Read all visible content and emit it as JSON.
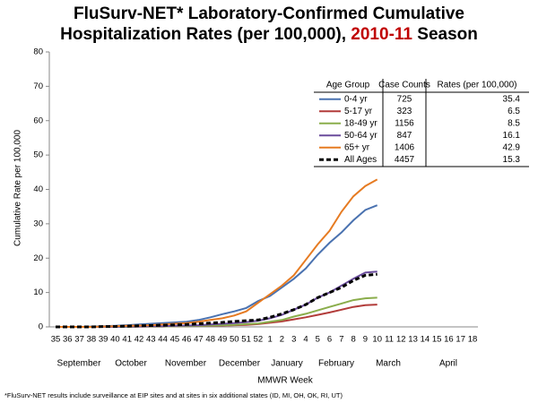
{
  "chart_data": {
    "type": "line",
    "title_line1": "FluSurv-NET* Laboratory-Confirmed Cumulative",
    "title_line2": "Hospitalization Rates (per 100,000),",
    "title_season": "2010-11",
    "title_season_color": "#c00000",
    "title_end": "Season",
    "y_label": "Cumulative Rate per 100,000",
    "x_label": "MMWR Week",
    "footnote": "*FluSurv-NET results include surveillance at EIP sites and at sites in six additional states (ID, MI, OH, OK, RI, UT)",
    "categories": [
      35,
      36,
      37,
      38,
      39,
      40,
      41,
      42,
      43,
      44,
      45,
      46,
      47,
      48,
      49,
      50,
      51,
      52,
      1,
      2,
      3,
      4,
      5,
      6,
      7,
      8,
      9,
      10,
      11,
      12,
      13,
      14,
      15,
      16,
      17,
      18
    ],
    "months": [
      "September",
      "October",
      "November",
      "December",
      "January",
      "February",
      "March",
      "April"
    ],
    "ylim": [
      0,
      80
    ],
    "yticks": [
      0,
      10,
      20,
      30,
      40,
      50,
      60,
      70,
      80
    ],
    "legend_headers": [
      "Age Group",
      "Case Counts",
      "Rates (per 100,000)"
    ],
    "series": [
      {
        "name": "0-4 yr",
        "color": "#4a72b0",
        "dashed": false,
        "case_count": 725,
        "rate": 35.4,
        "values": [
          0,
          0,
          0,
          0.1,
          0.2,
          0.3,
          0.5,
          0.7,
          0.9,
          1.1,
          1.3,
          1.5,
          2,
          2.8,
          3.7,
          4.5,
          5.5,
          7.5,
          9,
          11.5,
          14,
          17,
          21,
          24.5,
          27.5,
          31,
          34,
          35.4,
          null,
          null,
          null,
          null,
          null,
          null,
          null,
          null
        ]
      },
      {
        "name": "5-17 yr",
        "color": "#b23c3a",
        "dashed": false,
        "case_count": 323,
        "rate": 6.5,
        "values": [
          0,
          0,
          0,
          0,
          0,
          0,
          0,
          0.1,
          0.1,
          0.1,
          0.2,
          0.2,
          0.3,
          0.3,
          0.4,
          0.5,
          0.6,
          0.8,
          1.2,
          1.6,
          2.2,
          2.8,
          3.5,
          4.2,
          5,
          5.8,
          6.3,
          6.5,
          null,
          null,
          null,
          null,
          null,
          null,
          null,
          null
        ]
      },
      {
        "name": "18-49 yr",
        "color": "#8aad4b",
        "dashed": false,
        "case_count": 1156,
        "rate": 8.5,
        "values": [
          0,
          0,
          0,
          0,
          0,
          0,
          0,
          0.1,
          0.1,
          0.1,
          0.2,
          0.2,
          0.3,
          0.4,
          0.5,
          0.6,
          0.8,
          1,
          1.5,
          2,
          3,
          3.8,
          4.8,
          5.8,
          6.8,
          7.8,
          8.3,
          8.5,
          null,
          null,
          null,
          null,
          null,
          null,
          null,
          null
        ]
      },
      {
        "name": "50-64 yr",
        "color": "#6a4c9c",
        "dashed": false,
        "case_count": 847,
        "rate": 16.1,
        "values": [
          0,
          0,
          0,
          0,
          0,
          0,
          0.1,
          0.1,
          0.2,
          0.2,
          0.3,
          0.4,
          0.5,
          0.7,
          0.9,
          1.1,
          1.4,
          1.8,
          2.5,
          3.5,
          5,
          6.5,
          8.5,
          10,
          12,
          14,
          15.8,
          16.1,
          null,
          null,
          null,
          null,
          null,
          null,
          null,
          null
        ]
      },
      {
        "name": "65+ yr",
        "color": "#e67b22",
        "dashed": false,
        "case_count": 1406,
        "rate": 42.9,
        "values": [
          0,
          0,
          0,
          0,
          0.1,
          0.2,
          0.3,
          0.4,
          0.5,
          0.7,
          0.9,
          1.1,
          1.5,
          2,
          2.5,
          3.3,
          4.5,
          7,
          9.5,
          12,
          15,
          19.5,
          24,
          28,
          33.5,
          38,
          41,
          42.9,
          null,
          null,
          null,
          null,
          null,
          null,
          null,
          null
        ]
      },
      {
        "name": "All Ages",
        "color": "#000000",
        "dashed": true,
        "case_count": 4457,
        "rate": 15.3,
        "values": [
          0,
          0,
          0,
          0,
          0.1,
          0.1,
          0.2,
          0.3,
          0.4,
          0.5,
          0.6,
          0.7,
          0.9,
          1.1,
          1.3,
          1.6,
          1.8,
          2,
          2.8,
          3.8,
          5,
          6.5,
          8.5,
          10,
          11.5,
          13.5,
          15,
          15.3,
          null,
          null,
          null,
          null,
          null,
          null,
          null,
          null
        ]
      }
    ]
  }
}
